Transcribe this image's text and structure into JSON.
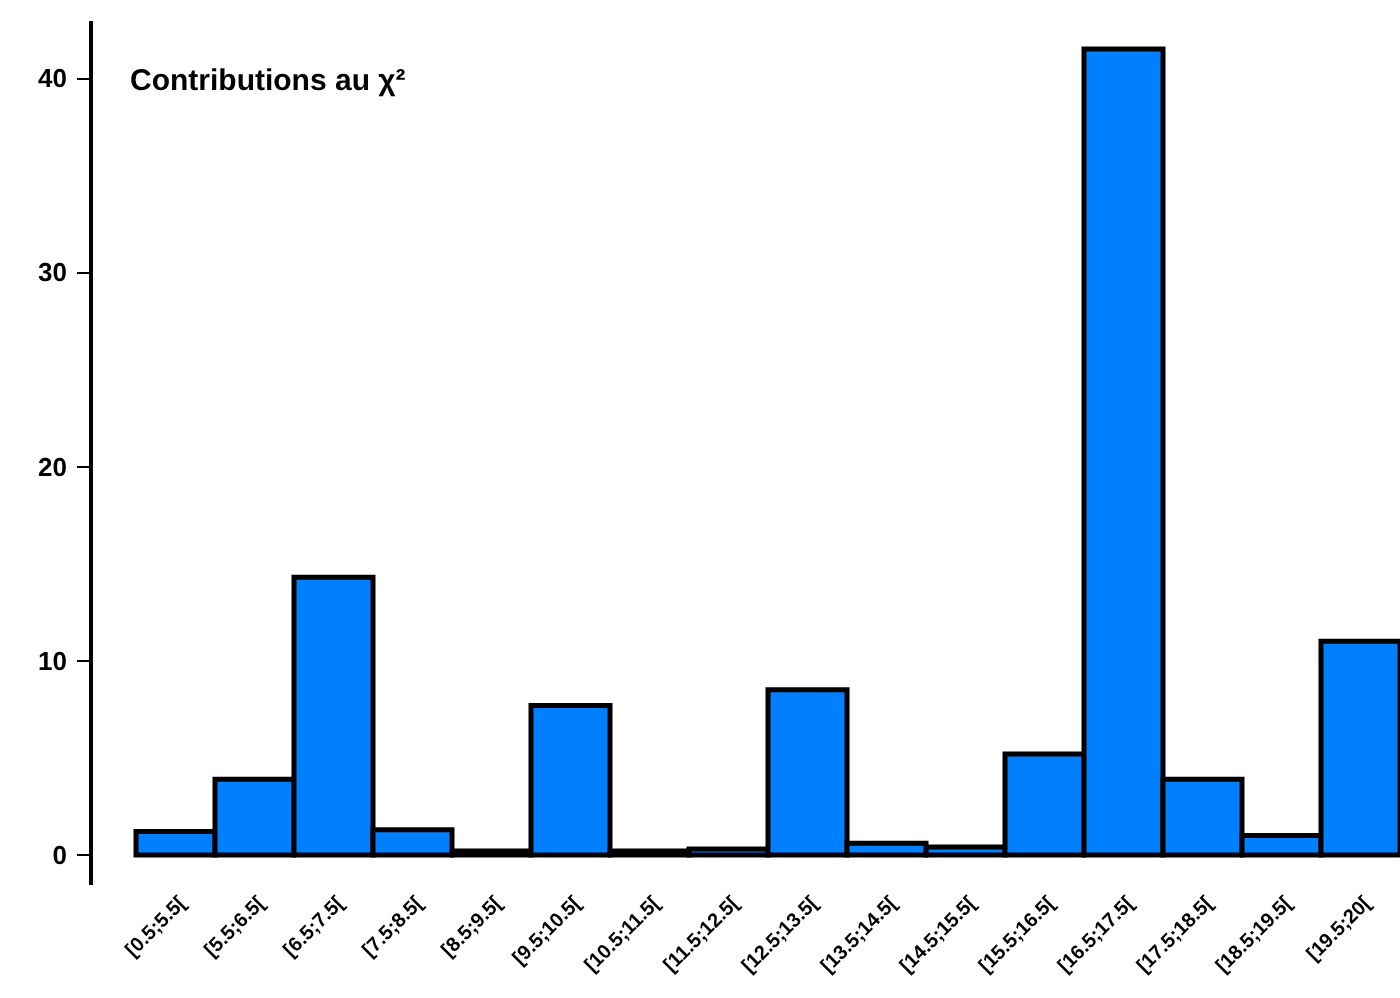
{
  "chart_data": {
    "type": "bar",
    "title": "Contributions au χ²",
    "categories": [
      "[0.5;5.5[",
      "[5.5;6.5[",
      "[6.5;7.5[",
      "[7.5;8.5[",
      "[8.5;9.5[",
      "[9.5;10.5[",
      "[10.5;11.5[",
      "[11.5;12.5[",
      "[12.5;13.5[",
      "[13.5;14.5[",
      "[14.5;15.5[",
      "[15.5;16.5[",
      "[16.5;17.5[",
      "[17.5;18.5[",
      "[18.5;19.5[",
      "[19.5;20["
    ],
    "values": [
      1.2,
      3.9,
      14.3,
      1.3,
      0.2,
      7.7,
      0.2,
      0.3,
      8.5,
      0.6,
      0.4,
      5.2,
      41.5,
      3.9,
      1.0,
      11.0
    ],
    "color": "#0080ff",
    "ylim": [
      -1.5,
      43
    ],
    "yticks": [
      0,
      10,
      20,
      30,
      40
    ],
    "grid": false
  }
}
